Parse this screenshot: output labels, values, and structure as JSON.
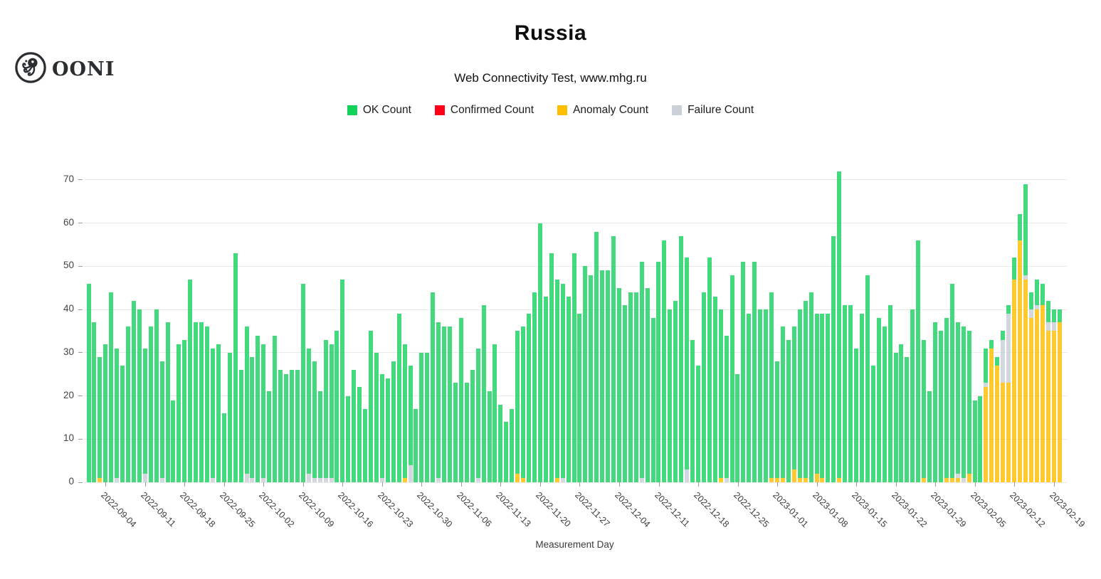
{
  "header": {
    "logo_text": "OONI",
    "title": "Russia",
    "subtitle": "Web Connectivity Test, www.mhg.ru"
  },
  "chart_data": {
    "type": "bar",
    "stacked": true,
    "stack_order_bottom_to_top": [
      "Anomaly Count",
      "Confirmed Count",
      "Failure Count",
      "OK Count"
    ],
    "title": "Russia",
    "subtitle": "Web Connectivity Test, www.mhg.ru",
    "xlabel": "Measurement Day",
    "ylabel": "",
    "ylim": [
      0,
      75
    ],
    "grid": "horizontal",
    "legend_position": "top-center",
    "y_ticks": [
      0,
      10,
      20,
      30,
      40,
      50,
      60,
      70
    ],
    "start_date": "2022-09-01",
    "end_date": "2023-02-20",
    "x_tick_labels": [
      "2022-09-04",
      "2022-09-11",
      "2022-09-18",
      "2022-09-25",
      "2022-10-02",
      "2022-10-09",
      "2022-10-16",
      "2022-10-23",
      "2022-10-30",
      "2022-11-06",
      "2022-11-13",
      "2022-11-20",
      "2022-11-27",
      "2022-12-04",
      "2022-12-11",
      "2022-12-18",
      "2022-12-25",
      "2023-01-01",
      "2023-01-08",
      "2023-01-15",
      "2023-01-22",
      "2023-01-29",
      "2023-02-05",
      "2023-02-12",
      "2023-02-19"
    ],
    "series": [
      {
        "name": "OK Count",
        "color": "#14d15c",
        "values": [
          46,
          37,
          28,
          32,
          44,
          30,
          27,
          36,
          42,
          40,
          29,
          36,
          40,
          27,
          37,
          19,
          32,
          33,
          47,
          37,
          37,
          36,
          30,
          32,
          16,
          30,
          53,
          26,
          34,
          28,
          34,
          31,
          21,
          34,
          26,
          25,
          26,
          26,
          46,
          29,
          27,
          20,
          32,
          31,
          35,
          47,
          20,
          26,
          22,
          17,
          35,
          30,
          24,
          24,
          28,
          39,
          31,
          23,
          17,
          30,
          30,
          44,
          36,
          36,
          36,
          23,
          38,
          23,
          26,
          30,
          41,
          21,
          32,
          18,
          14,
          17,
          33,
          35,
          39,
          44,
          60,
          43,
          53,
          46,
          45,
          43,
          53,
          39,
          50,
          48,
          58,
          49,
          49,
          57,
          45,
          41,
          44,
          44,
          50,
          45,
          38,
          51,
          56,
          40,
          42,
          57,
          49,
          33,
          27,
          44,
          52,
          43,
          39,
          33,
          48,
          25,
          51,
          39,
          51,
          40,
          40,
          43,
          27,
          35,
          33,
          33,
          39,
          41,
          44,
          37,
          38,
          39,
          57,
          71,
          41,
          41,
          31,
          39,
          48,
          27,
          38,
          36,
          41,
          30,
          32,
          29,
          40,
          56,
          32,
          21,
          37,
          35,
          37,
          45,
          35,
          35,
          33,
          19,
          20,
          8,
          2,
          2,
          2,
          2,
          5,
          6,
          21,
          4,
          6,
          5,
          5,
          3,
          3
        ]
      },
      {
        "name": "Confirmed Count",
        "color": "#ff0018",
        "values": [
          0,
          0,
          0,
          0,
          0,
          0,
          0,
          0,
          0,
          0,
          0,
          0,
          0,
          0,
          0,
          0,
          0,
          0,
          0,
          0,
          0,
          0,
          0,
          0,
          0,
          0,
          0,
          0,
          0,
          0,
          0,
          0,
          0,
          0,
          0,
          0,
          0,
          0,
          0,
          0,
          0,
          0,
          0,
          0,
          0,
          0,
          0,
          0,
          0,
          0,
          0,
          0,
          0,
          0,
          0,
          0,
          0,
          0,
          0,
          0,
          0,
          0,
          0,
          0,
          0,
          0,
          0,
          0,
          0,
          0,
          0,
          0,
          0,
          0,
          0,
          0,
          0,
          0,
          0,
          0,
          0,
          0,
          0,
          0,
          0,
          0,
          0,
          0,
          0,
          0,
          0,
          0,
          0,
          0,
          0,
          0,
          0,
          0,
          0,
          0,
          0,
          0,
          0,
          0,
          0,
          0,
          0,
          0,
          0,
          0,
          0,
          0,
          0,
          0,
          0,
          0,
          0,
          0,
          0,
          0,
          0,
          0,
          0,
          0,
          0,
          0,
          0,
          0,
          0,
          0,
          0,
          0,
          0,
          0,
          0,
          0,
          0,
          0,
          0,
          0,
          0,
          0,
          0,
          0,
          0,
          0,
          0,
          0,
          0,
          0,
          0,
          0,
          0,
          0,
          0,
          0,
          0,
          0,
          0,
          0,
          0,
          0,
          0,
          0,
          0,
          0,
          0,
          0,
          0,
          0,
          0,
          0,
          0
        ]
      },
      {
        "name": "Anomaly Count",
        "color": "#ffbe00",
        "values": [
          0,
          0,
          1,
          0,
          0,
          0,
          0,
          0,
          0,
          0,
          0,
          0,
          0,
          0,
          0,
          0,
          0,
          0,
          0,
          0,
          0,
          0,
          0,
          0,
          0,
          0,
          0,
          0,
          0,
          0,
          0,
          0,
          0,
          0,
          0,
          0,
          0,
          0,
          0,
          0,
          0,
          0,
          0,
          0,
          0,
          0,
          0,
          0,
          0,
          0,
          0,
          0,
          0,
          0,
          0,
          0,
          1,
          0,
          0,
          0,
          0,
          0,
          0,
          0,
          0,
          0,
          0,
          0,
          0,
          0,
          0,
          0,
          0,
          0,
          0,
          0,
          2,
          1,
          0,
          0,
          0,
          0,
          0,
          1,
          0,
          0,
          0,
          0,
          0,
          0,
          0,
          0,
          0,
          0,
          0,
          0,
          0,
          0,
          0,
          0,
          0,
          0,
          0,
          0,
          0,
          0,
          0,
          0,
          0,
          0,
          0,
          0,
          1,
          0,
          0,
          0,
          0,
          0,
          0,
          0,
          0,
          1,
          1,
          1,
          0,
          3,
          1,
          1,
          0,
          2,
          1,
          0,
          0,
          1,
          0,
          0,
          0,
          0,
          0,
          0,
          0,
          0,
          0,
          0,
          0,
          0,
          0,
          0,
          1,
          0,
          0,
          0,
          1,
          1,
          1,
          0,
          2,
          0,
          0,
          22,
          31,
          27,
          23,
          23,
          47,
          56,
          47,
          38,
          40,
          41,
          35,
          35,
          37
        ]
      },
      {
        "name": "Failure Count",
        "color": "#c9d0d7",
        "values": [
          0,
          0,
          0,
          0,
          0,
          1,
          0,
          0,
          0,
          0,
          2,
          0,
          0,
          1,
          0,
          0,
          0,
          0,
          0,
          0,
          0,
          0,
          1,
          0,
          0,
          0,
          0,
          0,
          2,
          1,
          0,
          1,
          0,
          0,
          0,
          0,
          0,
          0,
          0,
          2,
          1,
          1,
          1,
          1,
          0,
          0,
          0,
          0,
          0,
          0,
          0,
          0,
          1,
          0,
          0,
          0,
          0,
          4,
          0,
          0,
          0,
          0,
          1,
          0,
          0,
          0,
          0,
          0,
          0,
          1,
          0,
          0,
          0,
          0,
          0,
          0,
          0,
          0,
          0,
          0,
          0,
          0,
          0,
          0,
          1,
          0,
          0,
          0,
          0,
          0,
          0,
          0,
          0,
          0,
          0,
          0,
          0,
          0,
          1,
          0,
          0,
          0,
          0,
          0,
          0,
          0,
          3,
          0,
          0,
          0,
          0,
          0,
          0,
          1,
          0,
          0,
          0,
          0,
          0,
          0,
          0,
          0,
          0,
          0,
          0,
          0,
          0,
          0,
          0,
          0,
          0,
          0,
          0,
          0,
          0,
          0,
          0,
          0,
          0,
          0,
          0,
          0,
          0,
          0,
          0,
          0,
          0,
          0,
          0,
          0,
          0,
          0,
          0,
          0,
          1,
          1,
          0,
          0,
          0,
          1,
          0,
          0,
          10,
          16,
          0,
          0,
          1,
          2,
          1,
          0,
          2,
          2,
          0
        ]
      }
    ]
  }
}
